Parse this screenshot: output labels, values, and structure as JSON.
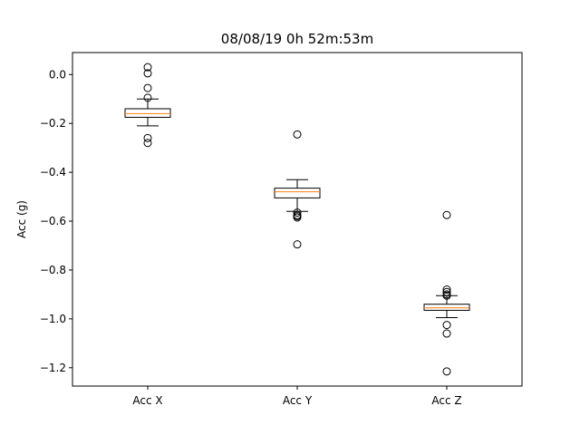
{
  "chart_data": {
    "type": "box",
    "title": "08/08/19 0h 52m:53m",
    "xlabel": "",
    "ylabel": "Acc (g)",
    "ylim": [
      -1.275,
      0.09
    ],
    "yticks": [
      "0.0",
      "-0.2",
      "-0.4",
      "-0.6",
      "-0.8",
      "-1.0",
      "-1.2"
    ],
    "grid": false,
    "categories": [
      "Acc X",
      "Acc Y",
      "Acc Z"
    ],
    "series": [
      {
        "name": "Acc X",
        "whisker_low": -0.21,
        "q1": -0.175,
        "median": -0.16,
        "q3": -0.14,
        "whisker_high": -0.1,
        "outliers": [
          0.03,
          0.005,
          -0.055,
          -0.095,
          -0.26,
          -0.28
        ]
      },
      {
        "name": "Acc Y",
        "whisker_low": -0.56,
        "q1": -0.505,
        "median": -0.48,
        "q3": -0.465,
        "whisker_high": -0.43,
        "outliers": [
          -0.245,
          -0.565,
          -0.575,
          -0.58,
          -0.585,
          -0.695
        ]
      },
      {
        "name": "Acc Z",
        "whisker_low": -0.995,
        "q1": -0.965,
        "median": -0.955,
        "q3": -0.94,
        "whisker_high": -0.905,
        "outliers": [
          -0.575,
          -0.88,
          -0.89,
          -0.9,
          -0.905,
          -1.025,
          -1.06,
          -1.215
        ]
      }
    ],
    "colors": {
      "box": "#000000",
      "median": "#ff7f0e",
      "outlier_edge": "#000000"
    }
  }
}
